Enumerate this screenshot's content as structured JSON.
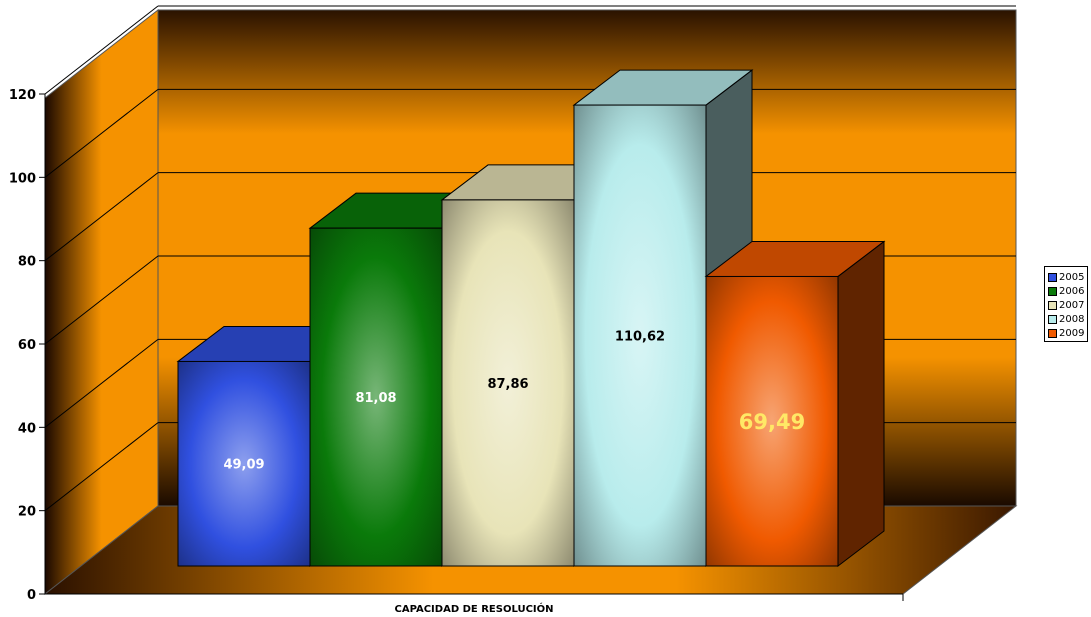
{
  "chart_data": {
    "type": "bar",
    "style": "3d-clustered-column",
    "xlabel": "CAPACIDAD DE RESOLUCIÓN",
    "ylabel": "",
    "ylim": [
      0,
      120
    ],
    "yticks": [
      "0",
      "20",
      "40",
      "60",
      "80",
      "100",
      "120"
    ],
    "grid": true,
    "legend_position": "right",
    "series": [
      {
        "name": "2005",
        "value": 49.09,
        "label": "49,09",
        "color": "#3050e0",
        "label_color": "#ffffff"
      },
      {
        "name": "2006",
        "value": 81.08,
        "label": "81,08",
        "color": "#0a7a0a",
        "label_color": "#ffffff"
      },
      {
        "name": "2007",
        "value": 87.86,
        "label": "87,86",
        "color": "#e8e4b8",
        "label_color": "#000000"
      },
      {
        "name": "2008",
        "value": 110.62,
        "label": "110,62",
        "color": "#b8ecec",
        "label_color": "#000000"
      },
      {
        "name": "2009",
        "value": 69.49,
        "label": "69,49",
        "color": "#f05a00",
        "label_color": "#ffe866"
      }
    ],
    "background": {
      "wall": "#f59200",
      "floor": "#f59200"
    }
  }
}
